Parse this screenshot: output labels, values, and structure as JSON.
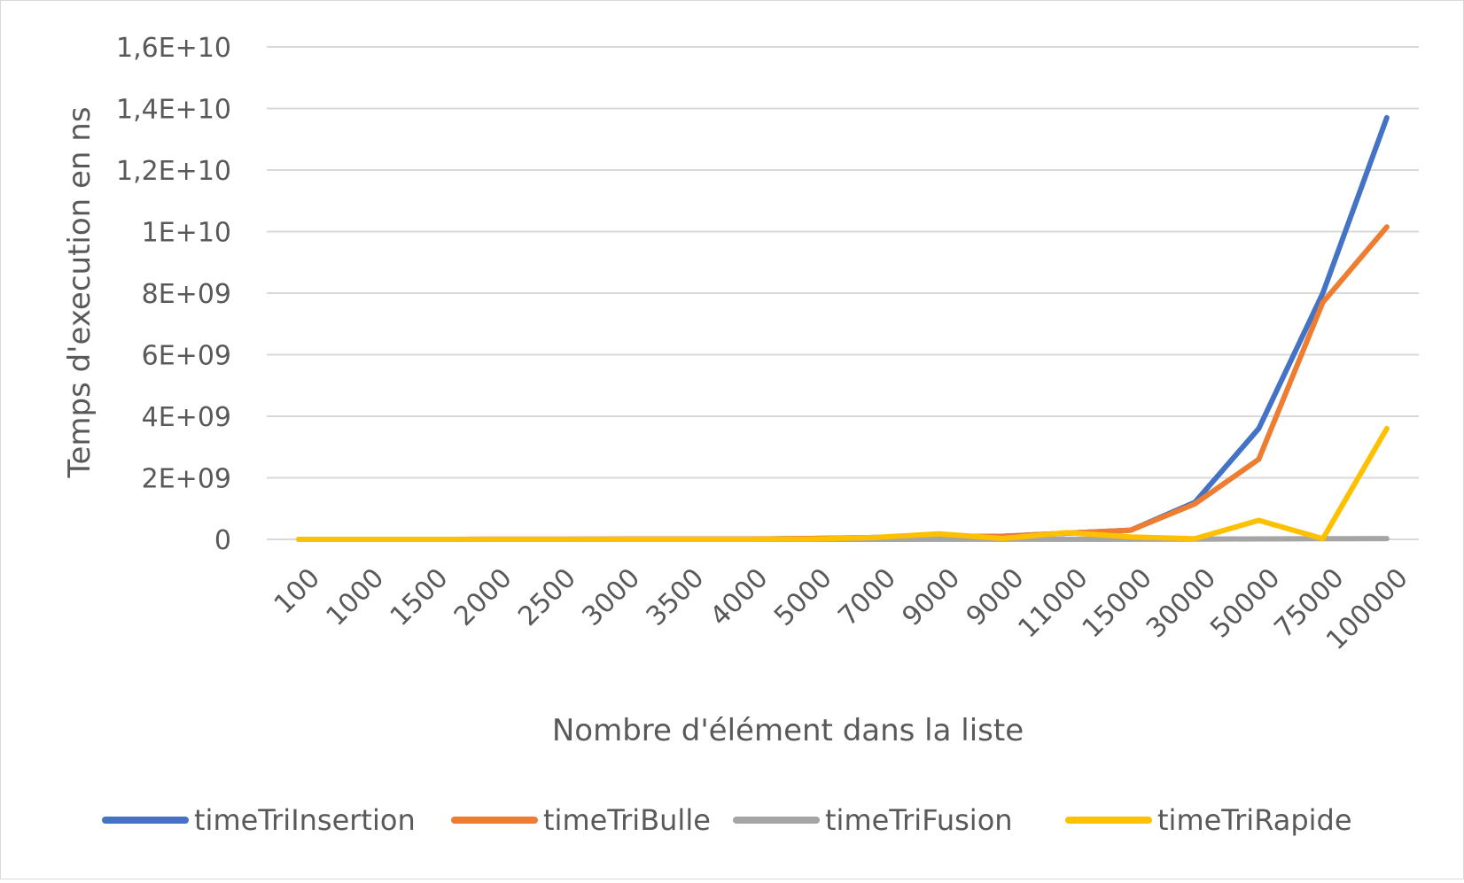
{
  "chart_data": {
    "type": "line",
    "xlabel": "Nombre d'élément dans la liste",
    "ylabel": "Temps d'execution en ns",
    "categories": [
      "100",
      "1000",
      "1500",
      "2000",
      "2500",
      "3000",
      "3500",
      "4000",
      "5000",
      "7000",
      "9000",
      "9000",
      "11000",
      "15000",
      "30000",
      "50000",
      "75000",
      "100000"
    ],
    "ylim": [
      0,
      16000000000
    ],
    "yticks": [
      0,
      2000000000,
      4000000000,
      6000000000,
      8000000000,
      10000000000,
      12000000000,
      14000000000,
      16000000000
    ],
    "ytick_labels": [
      "0",
      "2E+09",
      "4E+09",
      "6E+09",
      "8E+09",
      "1E+10",
      "1,2E+10",
      "1,4E+10",
      "1,6E+10"
    ],
    "grid": true,
    "legend_position": "bottom",
    "series": [
      {
        "name": "timeTriInsertion",
        "color": "#4472c4",
        "values": [
          0,
          500000,
          1000000,
          2000000,
          3000000,
          5000000,
          7000000,
          10000000,
          30000000,
          60000000,
          100000000,
          100000000,
          200000000,
          300000000,
          1200000000,
          3600000000,
          8000000000,
          13700000000
        ]
      },
      {
        "name": "timeTriBulle",
        "color": "#ed7d31",
        "values": [
          0,
          500000,
          1000000,
          2000000,
          3000000,
          5000000,
          7000000,
          10000000,
          30000000,
          60000000,
          100000000,
          100000000,
          200000000,
          300000000,
          1150000000,
          2600000000,
          7700000000,
          10150000000
        ]
      },
      {
        "name": "timeTriFusion",
        "color": "#a5a5a5",
        "values": [
          0,
          0,
          0,
          0,
          0,
          0,
          0,
          0,
          1000000,
          1000000,
          2000000,
          2000000,
          3000000,
          4000000,
          8000000,
          15000000,
          20000000,
          25000000
        ]
      },
      {
        "name": "timeTriRapide",
        "color": "#ffc000",
        "values": [
          0,
          0,
          0,
          0,
          0,
          0,
          0,
          0,
          10000000,
          60000000,
          180000000,
          30000000,
          220000000,
          80000000,
          20000000,
          620000000,
          20000000,
          3600000000
        ]
      }
    ]
  }
}
